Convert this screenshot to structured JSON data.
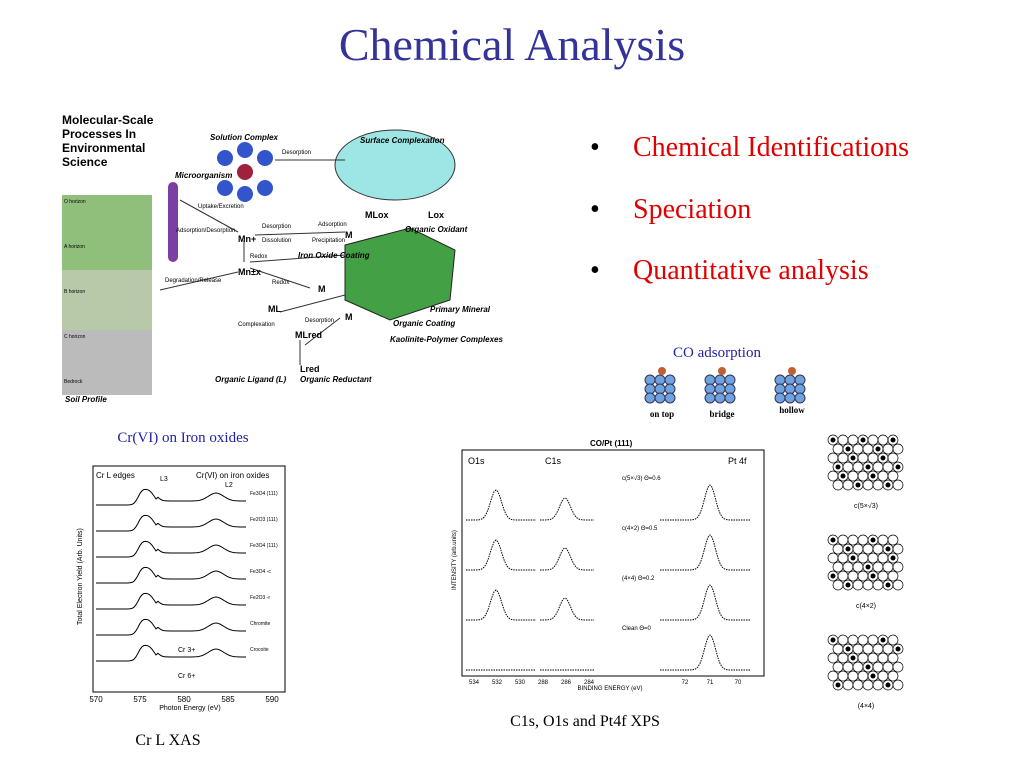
{
  "title": "Chemical Analysis",
  "bullets": [
    "Chemical Identifications",
    "Speciation",
    "Quantitative analysis"
  ],
  "environment_figure": {
    "heading": "Molecular-Scale Processes In Environmental Science",
    "labels": [
      "Solution Complex",
      "Surface Complexation",
      "Microorganism",
      "Organic Oxidant",
      "Iron Oxide Coating",
      "Primary Mineral",
      "Organic Coating",
      "Kaolinite-Polymer Complexes",
      "Organic Ligand (L)",
      "Organic Reductant",
      "Soil Profile"
    ],
    "arrows": [
      "Desorption",
      "Uptake/Excretion",
      "Adsorption/Desorption",
      "Desorption",
      "Dissolution",
      "Adsorption",
      "Precipitation",
      "Redox",
      "Degradation/Release",
      "Redox",
      "Complexation",
      "Desorption"
    ],
    "horizons": [
      "O horizon",
      "A horizon",
      "B horizon",
      "C horizon",
      "Bedrock"
    ],
    "species": [
      "Mn+",
      "Mn±x",
      "M",
      "M",
      "M",
      "ML",
      "MLox",
      "Lox",
      "MLred",
      "Lred"
    ]
  },
  "co_adsorption": {
    "caption": "CO adsorption",
    "sites": [
      "on top",
      "bridge",
      "hollow"
    ]
  },
  "xas": {
    "caption_top": "Cr(VI) on Iron oxides",
    "caption_bottom": "Cr L XAS",
    "inner_title": "Cr(VI) on iron oxides",
    "edges": "Cr L edges",
    "l3": "L3",
    "l2": "L2",
    "ylabel": "Total Electron Yield (Arb. Units)",
    "xlabel": "Photon Energy (eV)",
    "xticks": [
      "570",
      "575",
      "580",
      "585",
      "590"
    ],
    "spectra": [
      "Fe3O4 (111)",
      "Fe2O3 (111)",
      "Fe3O4 (111)",
      "Fe3O4 -c",
      "Fe2O3 -r",
      "Chromite",
      "Crocoite"
    ],
    "cr3": "Cr 3+",
    "cr6": "Cr 6+"
  },
  "xps": {
    "caption": "C1s, O1s and Pt4f XPS",
    "inner_title": "CO/Pt (111)",
    "regions": [
      "O1s",
      "C1s",
      "Pt 4f"
    ],
    "ylabel": "INTENSITY (arb.units)",
    "xlabel": "BINDING ENERGY (eV)",
    "xticks": [
      "534",
      "532",
      "530",
      "288",
      "286",
      "284",
      "72",
      "71",
      "70"
    ],
    "panels": [
      "c(5×√3) Θ=0.6",
      "c(4×2) Θ=0.5",
      "(4×4) Θ=0.2",
      "Clean Θ=0"
    ]
  },
  "structures": [
    "c(5×√3)",
    "c(4×2)",
    "(4×4)"
  ]
}
